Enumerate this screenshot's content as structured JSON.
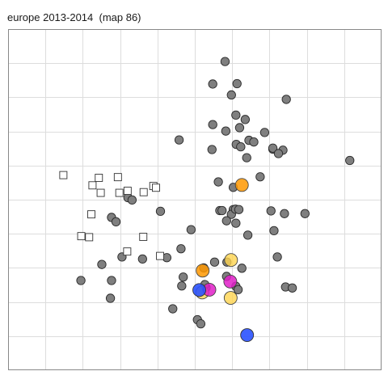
{
  "chart_data": {
    "type": "scatter",
    "title": "europe 2013-2014  (map 86)",
    "xlabel": "",
    "ylabel": "",
    "xlim": [
      0,
      100
    ],
    "ylim": [
      0,
      100
    ],
    "grid": true,
    "colors": {
      "panel_border": "#888888",
      "grid": "#dddddd",
      "gray_fill": "#7f7f7f",
      "orange": "#ff9800",
      "yellow": "#ffd54f",
      "magenta": "#e01ec8",
      "blue": "#2a52ff"
    },
    "series": [
      {
        "name": "grey points",
        "marker": "circle",
        "points": [
          [
            58.1,
            90.5
          ],
          [
            54.8,
            83.9
          ],
          [
            61.3,
            84.0
          ],
          [
            59.8,
            80.7
          ],
          [
            74.5,
            79.4
          ],
          [
            61.0,
            74.8
          ],
          [
            54.8,
            72.0
          ],
          [
            58.3,
            70.1
          ],
          [
            62.0,
            71.1
          ],
          [
            63.5,
            73.5
          ],
          [
            68.7,
            69.7
          ],
          [
            45.8,
            67.5
          ],
          [
            54.6,
            64.7
          ],
          [
            61.1,
            66.2
          ],
          [
            64.5,
            67.4
          ],
          [
            62.3,
            65.5
          ],
          [
            65.8,
            66.9
          ],
          [
            63.9,
            62.3
          ],
          [
            70.9,
            64.8
          ],
          [
            73.6,
            64.5
          ],
          [
            70.9,
            65.1
          ],
          [
            72.4,
            63.5
          ],
          [
            91.5,
            61.5
          ],
          [
            56.3,
            55.2
          ],
          [
            60.3,
            53.6
          ],
          [
            67.5,
            56.7
          ],
          [
            56.7,
            46.8
          ],
          [
            57.3,
            46.8
          ],
          [
            60.3,
            47.1
          ],
          [
            59.8,
            45.7
          ],
          [
            60.9,
            47.2
          ],
          [
            61.8,
            47.1
          ],
          [
            58.5,
            43.8
          ],
          [
            61.0,
            43.1
          ],
          [
            64.2,
            39.6
          ],
          [
            70.4,
            46.7
          ],
          [
            74.0,
            45.9
          ],
          [
            79.5,
            45.9
          ],
          [
            71.2,
            40.9
          ],
          [
            72.1,
            33.2
          ],
          [
            40.8,
            46.6
          ],
          [
            32.1,
            50.6
          ],
          [
            33.2,
            49.9
          ],
          [
            27.7,
            44.8
          ],
          [
            28.9,
            43.5
          ],
          [
            49.0,
            41.2
          ],
          [
            46.3,
            35.6
          ],
          [
            42.5,
            33.0
          ],
          [
            36.0,
            32.6
          ],
          [
            30.5,
            33.2
          ],
          [
            25.1,
            31.0
          ],
          [
            19.5,
            26.3
          ],
          [
            27.7,
            26.3
          ],
          [
            27.4,
            21.1
          ],
          [
            44.1,
            18.0
          ],
          [
            50.7,
            14.8
          ],
          [
            51.6,
            13.6
          ],
          [
            46.9,
            27.3
          ],
          [
            46.5,
            24.7
          ],
          [
            55.3,
            31.7
          ],
          [
            52.4,
            30.0
          ],
          [
            58.6,
            31.7
          ],
          [
            62.6,
            29.9
          ],
          [
            58.5,
            27.5
          ],
          [
            53.0,
            24.2
          ],
          [
            52.7,
            25.1
          ],
          [
            61.0,
            24.6
          ],
          [
            61.6,
            23.6
          ],
          [
            74.3,
            24.4
          ],
          [
            76.1,
            24.1
          ]
        ]
      },
      {
        "name": "open squares",
        "marker": "square",
        "points": [
          [
            14.8,
            57.2
          ],
          [
            22.6,
            54.2
          ],
          [
            24.3,
            56.4
          ],
          [
            24.8,
            52.0
          ],
          [
            29.4,
            56.6
          ],
          [
            29.8,
            52.0
          ],
          [
            36.3,
            52.2
          ],
          [
            38.9,
            54.0
          ],
          [
            39.6,
            53.5
          ],
          [
            22.3,
            45.7
          ],
          [
            32.0,
            52.6
          ],
          [
            19.6,
            39.3
          ],
          [
            21.7,
            39.0
          ],
          [
            36.2,
            39.1
          ],
          [
            31.9,
            34.8
          ],
          [
            40.7,
            33.5
          ]
        ]
      },
      {
        "name": "orange",
        "marker": "circle",
        "points": [
          [
            62.6,
            54.3
          ],
          [
            52.1,
            29.2
          ]
        ]
      },
      {
        "name": "yellow",
        "marker": "circle",
        "points": [
          [
            59.7,
            32.3
          ],
          [
            52.0,
            22.8
          ],
          [
            59.6,
            21.2
          ]
        ]
      },
      {
        "name": "magenta",
        "marker": "circle",
        "points": [
          [
            53.9,
            23.6
          ],
          [
            59.5,
            26.0
          ]
        ]
      },
      {
        "name": "blue",
        "marker": "circle",
        "points": [
          [
            51.2,
            23.5
          ],
          [
            64.0,
            10.3
          ]
        ]
      }
    ]
  }
}
